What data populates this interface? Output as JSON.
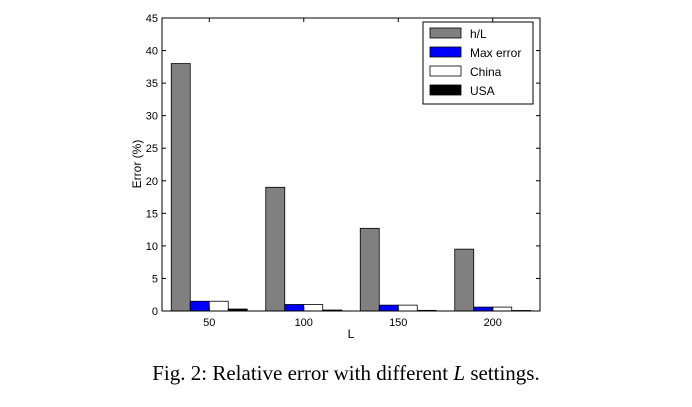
{
  "chart_data": {
    "type": "bar",
    "categories": [
      "50",
      "100",
      "150",
      "200"
    ],
    "series": [
      {
        "name": "h/L",
        "values": [
          38,
          19,
          12.7,
          9.5
        ],
        "color": "#808080"
      },
      {
        "name": "Max error",
        "values": [
          1.5,
          1.0,
          0.9,
          0.6
        ],
        "color": "#0000ff"
      },
      {
        "name": "China",
        "values": [
          1.5,
          1.0,
          0.9,
          0.6
        ],
        "color": "#ffffff"
      },
      {
        "name": "USA",
        "values": [
          0.3,
          0.15,
          0.1,
          0.08
        ],
        "color": "#000000"
      }
    ],
    "xlabel": "L",
    "ylabel": "Error (%)",
    "ylim": [
      0,
      45
    ],
    "yticks": [
      "0",
      "5",
      "10",
      "15",
      "20",
      "25",
      "30",
      "35",
      "40",
      "45"
    ],
    "legend_position": "top-right",
    "grid": false
  },
  "caption": {
    "prefix": "Fig. 2: Relative error with different ",
    "variable": "L",
    "suffix": " settings."
  }
}
